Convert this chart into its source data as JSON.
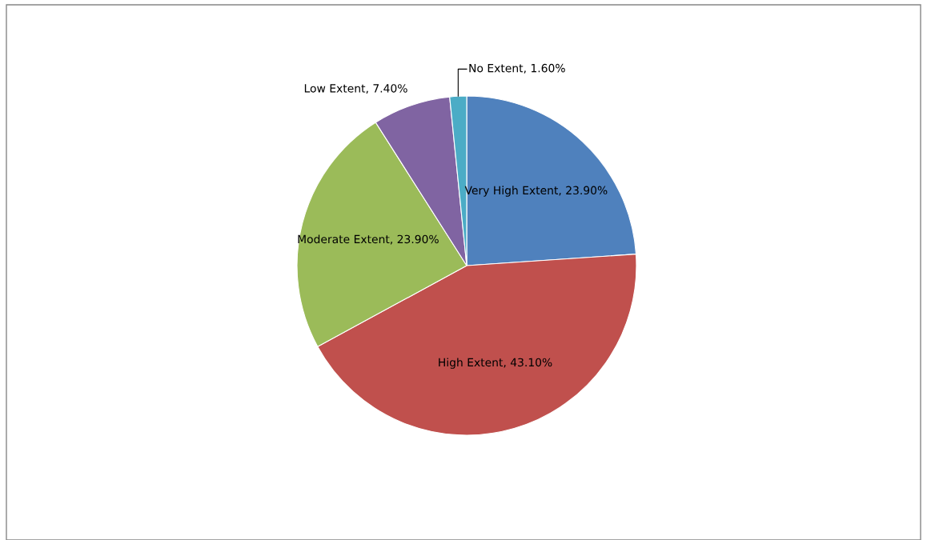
{
  "chart_data": {
    "type": "pie",
    "categories": [
      "Very High Extent",
      "High Extent",
      "Moderate Extent",
      "Low Extent",
      "No Extent"
    ],
    "values": [
      23.9,
      43.1,
      23.9,
      7.4,
      1.6
    ],
    "value_labels": [
      "23.90%",
      "43.10%",
      "23.90%",
      "7.40%",
      "1.60%"
    ],
    "colors": [
      "#4f81bd",
      "#c0504d",
      "#9bbb59",
      "#8064a2",
      "#4bacc6"
    ],
    "legend": false
  }
}
